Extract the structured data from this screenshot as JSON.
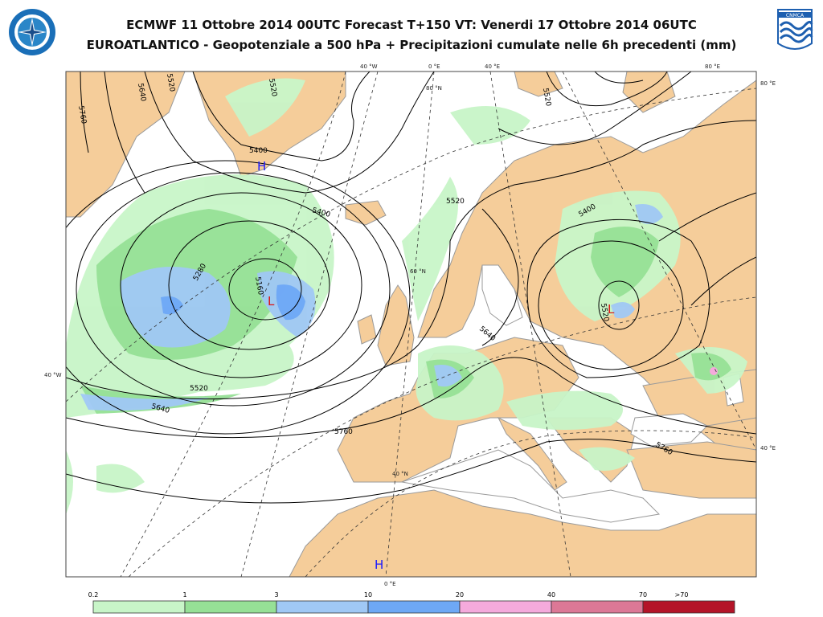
{
  "header": {
    "title_line1": "ECMWF 11 Ottobre 2014 00UTC Forecast T+150 VT: Venerdi 17 Ottobre 2014 06UTC",
    "title_line2": "EUROATLANTICO - Geopotenziale a 500 hPa + Precipitazioni cumulate nelle 6h precedenti (mm)"
  },
  "logos": {
    "left_icon": "meteorological-service-emblem-icon",
    "right_icon": "cnmca-logo-icon",
    "right_text": "CNMCA"
  },
  "map": {
    "grid_labels": {
      "top": [
        "40 °W",
        "0 °E",
        "40 °E",
        "80 °E"
      ],
      "right": [
        "80 °E",
        "40 °E"
      ],
      "left": [
        "40 °W"
      ],
      "inner": [
        "80 °N",
        "60 °N",
        "40 °N"
      ],
      "bottom": [
        "0 °E"
      ]
    },
    "contour_labels": [
      "5640",
      "5520",
      "5760",
      "5400",
      "5280",
      "5160",
      "5520",
      "5400",
      "5520",
      "5640",
      "5520",
      "5640",
      "5760",
      "5760",
      "5520",
      "5400",
      "5520"
    ],
    "pressure_centers": [
      {
        "symbol": "H",
        "color": "#1a1aff"
      },
      {
        "symbol": "L",
        "color": "#dd1111"
      },
      {
        "symbol": "L",
        "color": "#dd1111"
      },
      {
        "symbol": "H",
        "color": "#1a1aff"
      }
    ],
    "colors": {
      "land": "#f5cd9a",
      "sea": "#ffffff",
      "coast": "#9a9a9a",
      "contour": "#000000",
      "grid": "#333333"
    }
  },
  "legend": {
    "unit": "mm",
    "thresholds": [
      "0.2",
      "1",
      "3",
      "10",
      "20",
      "40",
      "70",
      ">70"
    ],
    "colors": [
      "#c8f5c8",
      "#96e096",
      "#a0c8f5",
      "#6ea8f5",
      "#f5aadc",
      "#dc7896",
      "#b41428"
    ]
  }
}
